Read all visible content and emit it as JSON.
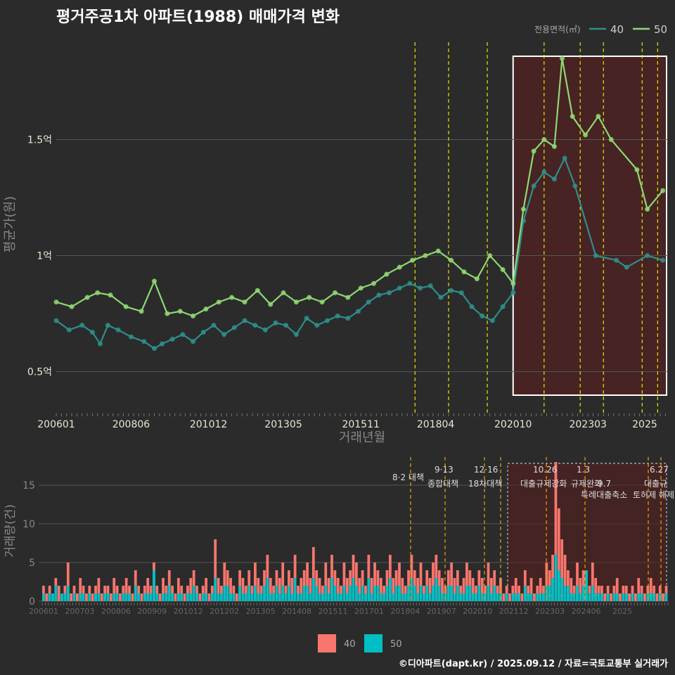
{
  "title": "평거주공1차 아파트(1988) 매매가격 변화",
  "footer": "©디아파트(dapt.kr) / 2025.09.12 / 자료=국토교통부 실거래가",
  "colors": {
    "bg": "#2b2b2c",
    "s40_line": "#2e8f8a",
    "s50_line": "#8fd872",
    "bar40": "#f8766d",
    "bar50": "#00bfc4",
    "vline": "#e6e600",
    "vline2": "#e6a400",
    "shade": "#5a1e1e"
  },
  "chart_data": [
    {
      "type": "line",
      "title": "평거주공1차 아파트(1988) 매매가격 변화",
      "xlabel": "거래년월",
      "ylabel": "평균가(원)",
      "x_ticks": [
        "200601",
        "200806",
        "201012",
        "201305",
        "201511",
        "201804",
        "202010",
        "202303",
        "2025"
      ],
      "y_ticks": [
        {
          "v": 0.5,
          "label": "0.5억"
        },
        {
          "v": 1.0,
          "label": "1억"
        },
        {
          "v": 1.5,
          "label": "1.5억"
        }
      ],
      "ylim": [
        0.32,
        1.95
      ],
      "legend_title": "전용면적(㎡)",
      "grid": true,
      "highlight_box": {
        "from": "2020-10",
        "to": "2025-10"
      },
      "policy_dates": [
        "2017-08",
        "2018-09",
        "2019-12",
        "2021-10",
        "2022-12",
        "2023-09",
        "2024-12",
        "2025-06"
      ],
      "series": [
        {
          "name": "40",
          "points": [
            [
              "2006-01",
              0.72
            ],
            [
              "2006-06",
              0.68
            ],
            [
              "2006-11",
              0.7
            ],
            [
              "2007-03",
              0.67
            ],
            [
              "2007-06",
              0.62
            ],
            [
              "2007-09",
              0.7
            ],
            [
              "2008-01",
              0.68
            ],
            [
              "2008-06",
              0.65
            ],
            [
              "2008-11",
              0.63
            ],
            [
              "2009-03",
              0.6
            ],
            [
              "2009-06",
              0.62
            ],
            [
              "2009-10",
              0.64
            ],
            [
              "2010-02",
              0.66
            ],
            [
              "2010-06",
              0.63
            ],
            [
              "2010-10",
              0.67
            ],
            [
              "2011-02",
              0.7
            ],
            [
              "2011-06",
              0.66
            ],
            [
              "2011-10",
              0.69
            ],
            [
              "2012-02",
              0.72
            ],
            [
              "2012-06",
              0.7
            ],
            [
              "2012-10",
              0.68
            ],
            [
              "2013-02",
              0.71
            ],
            [
              "2013-06",
              0.7
            ],
            [
              "2013-10",
              0.66
            ],
            [
              "2014-02",
              0.73
            ],
            [
              "2014-06",
              0.7
            ],
            [
              "2014-10",
              0.72
            ],
            [
              "2015-02",
              0.74
            ],
            [
              "2015-06",
              0.73
            ],
            [
              "2015-10",
              0.76
            ],
            [
              "2016-02",
              0.8
            ],
            [
              "2016-06",
              0.83
            ],
            [
              "2016-10",
              0.84
            ],
            [
              "2017-02",
              0.86
            ],
            [
              "2017-06",
              0.88
            ],
            [
              "2017-10",
              0.86
            ],
            [
              "2018-02",
              0.87
            ],
            [
              "2018-06",
              0.82
            ],
            [
              "2018-10",
              0.85
            ],
            [
              "2019-02",
              0.84
            ],
            [
              "2019-06",
              0.78
            ],
            [
              "2019-10",
              0.74
            ],
            [
              "2020-02",
              0.72
            ],
            [
              "2020-06",
              0.78
            ],
            [
              "2020-10",
              0.84
            ],
            [
              "2021-02",
              1.15
            ],
            [
              "2021-06",
              1.3
            ],
            [
              "2021-10",
              1.36
            ],
            [
              "2022-02",
              1.33
            ],
            [
              "2022-06",
              1.42
            ],
            [
              "2022-10",
              1.3
            ],
            [
              "2023-06",
              1.0
            ],
            [
              "2024-02",
              0.98
            ],
            [
              "2024-06",
              0.95
            ],
            [
              "2025-02",
              1.0
            ],
            [
              "2025-08",
              0.98
            ]
          ]
        },
        {
          "name": "50",
          "points": [
            [
              "2006-01",
              0.8
            ],
            [
              "2006-07",
              0.78
            ],
            [
              "2007-01",
              0.82
            ],
            [
              "2007-05",
              0.84
            ],
            [
              "2007-10",
              0.83
            ],
            [
              "2008-04",
              0.78
            ],
            [
              "2008-10",
              0.76
            ],
            [
              "2009-03",
              0.89
            ],
            [
              "2009-08",
              0.75
            ],
            [
              "2010-01",
              0.76
            ],
            [
              "2010-06",
              0.74
            ],
            [
              "2010-11",
              0.77
            ],
            [
              "2011-04",
              0.8
            ],
            [
              "2011-09",
              0.82
            ],
            [
              "2012-02",
              0.8
            ],
            [
              "2012-07",
              0.85
            ],
            [
              "2012-12",
              0.79
            ],
            [
              "2013-05",
              0.84
            ],
            [
              "2013-10",
              0.8
            ],
            [
              "2014-03",
              0.82
            ],
            [
              "2014-08",
              0.8
            ],
            [
              "2015-01",
              0.84
            ],
            [
              "2015-06",
              0.82
            ],
            [
              "2015-11",
              0.86
            ],
            [
              "2016-04",
              0.88
            ],
            [
              "2016-09",
              0.92
            ],
            [
              "2017-02",
              0.95
            ],
            [
              "2017-07",
              0.98
            ],
            [
              "2017-12",
              1.0
            ],
            [
              "2018-05",
              1.02
            ],
            [
              "2018-10",
              0.98
            ],
            [
              "2019-03",
              0.93
            ],
            [
              "2019-08",
              0.9
            ],
            [
              "2020-01",
              1.0
            ],
            [
              "2020-06",
              0.94
            ],
            [
              "2020-10",
              0.88
            ],
            [
              "2021-02",
              1.2
            ],
            [
              "2021-06",
              1.45
            ],
            [
              "2021-10",
              1.5
            ],
            [
              "2022-02",
              1.47
            ],
            [
              "2022-05",
              1.85
            ],
            [
              "2022-09",
              1.6
            ],
            [
              "2023-02",
              1.52
            ],
            [
              "2023-07",
              1.6
            ],
            [
              "2023-12",
              1.5
            ],
            [
              "2024-10",
              1.37
            ],
            [
              "2025-02",
              1.2
            ],
            [
              "2025-08",
              1.28
            ]
          ]
        }
      ]
    },
    {
      "type": "bar",
      "xlabel": "",
      "ylabel": "거래량(건)",
      "x_ticks": [
        "200601",
        "200703",
        "200806",
        "200909",
        "201012",
        "201202",
        "201305",
        "201408",
        "201511",
        "201701",
        "201804",
        "201907",
        "202010",
        "202112",
        "202303",
        "202406",
        "2025"
      ],
      "y_ticks": [
        0,
        5,
        10,
        15
      ],
      "ylim": [
        0,
        18
      ],
      "series": [
        {
          "name": "40",
          "values": [
            2,
            1,
            2,
            1,
            3,
            2,
            1,
            2,
            5,
            1,
            2,
            1,
            3,
            2,
            1,
            2,
            1,
            2,
            3,
            1,
            2,
            2,
            1,
            3,
            2,
            1,
            2,
            3,
            2,
            1,
            4,
            2,
            1,
            2,
            3,
            2,
            5,
            2,
            1,
            3,
            2,
            4,
            2,
            1,
            3,
            2,
            1,
            2,
            3,
            4,
            2,
            1,
            2,
            3,
            1,
            2,
            8,
            3,
            2,
            5,
            4,
            3,
            2,
            1,
            4,
            3,
            2,
            4,
            2,
            5,
            3,
            2,
            4,
            6,
            3,
            2,
            4,
            3,
            5,
            2,
            4,
            3,
            6,
            2,
            3,
            4,
            5,
            3,
            7,
            4,
            3,
            2,
            5,
            3,
            6,
            4,
            3,
            2,
            5,
            3,
            4,
            6,
            5,
            3,
            4,
            2,
            6,
            3,
            5,
            4,
            3,
            2,
            4,
            6,
            3,
            4,
            5,
            3,
            2,
            4,
            6,
            4,
            3,
            5,
            2,
            4,
            3,
            5,
            6,
            4,
            3,
            2,
            4,
            5,
            3,
            4,
            2,
            3,
            5,
            4,
            3,
            2,
            4,
            3,
            2,
            5,
            3,
            4,
            2,
            3,
            1,
            2,
            1,
            2,
            3,
            2,
            1,
            4,
            2,
            3,
            1,
            2,
            3,
            2,
            5,
            4,
            6,
            18,
            12,
            8,
            6,
            4,
            3,
            2,
            5,
            3,
            4,
            3,
            2,
            5,
            3,
            2,
            2,
            1,
            2,
            1,
            2,
            3,
            1,
            2,
            2,
            1,
            2,
            1,
            3,
            2,
            1,
            2,
            3,
            2,
            1,
            2,
            1,
            2
          ]
        },
        {
          "name": "50",
          "values": [
            1,
            0,
            1,
            1,
            2,
            0,
            1,
            1,
            2,
            0,
            1,
            0,
            1,
            1,
            0,
            1,
            0,
            1,
            1,
            0,
            1,
            1,
            0,
            1,
            1,
            0,
            1,
            1,
            1,
            0,
            2,
            1,
            0,
            1,
            1,
            1,
            4,
            1,
            0,
            1,
            1,
            2,
            1,
            0,
            1,
            1,
            0,
            1,
            1,
            2,
            1,
            0,
            1,
            1,
            0,
            1,
            3,
            1,
            1,
            2,
            2,
            1,
            1,
            0,
            2,
            1,
            1,
            2,
            1,
            2,
            1,
            1,
            2,
            3,
            1,
            1,
            2,
            1,
            2,
            1,
            2,
            1,
            3,
            1,
            1,
            2,
            2,
            1,
            3,
            2,
            1,
            1,
            2,
            1,
            3,
            2,
            1,
            1,
            2,
            1,
            2,
            3,
            2,
            1,
            2,
            1,
            3,
            1,
            2,
            2,
            1,
            1,
            2,
            3,
            1,
            2,
            2,
            1,
            1,
            2,
            3,
            2,
            1,
            2,
            1,
            2,
            1,
            2,
            3,
            2,
            1,
            1,
            2,
            2,
            1,
            2,
            1,
            1,
            2,
            2,
            1,
            1,
            2,
            1,
            1,
            2,
            1,
            2,
            1,
            1,
            0,
            1,
            0,
            1,
            1,
            1,
            0,
            2,
            1,
            1,
            0,
            1,
            1,
            1,
            2,
            2,
            3,
            6,
            4,
            3,
            2,
            2,
            1,
            1,
            2,
            1,
            2,
            4,
            1,
            2,
            1,
            1,
            1,
            0,
            1,
            0,
            1,
            1,
            0,
            1,
            1,
            0,
            1,
            0,
            1,
            1,
            0,
            1,
            1,
            1,
            0,
            1,
            0,
            1
          ]
        }
      ],
      "annotations": [
        "8·2 대책",
        "9·13",
        "종합대책",
        "12·16",
        "18차대책",
        "10.26",
        "대출규제강화",
        "1.3",
        "규제완화",
        "9.7",
        "특례대출축소",
        "토허제 해제",
        "6.27",
        "대출규"
      ]
    }
  ],
  "legend_bottom": [
    "40",
    "50"
  ]
}
